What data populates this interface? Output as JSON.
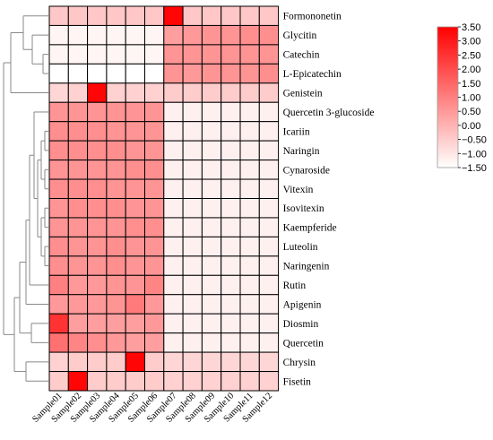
{
  "chart_data": {
    "type": "heatmap",
    "columns": [
      "Sample01",
      "Sample02",
      "Sample03",
      "Sample04",
      "Sample05",
      "Sample06",
      "Sample07",
      "Sample08",
      "Sample09",
      "Sample10",
      "Sample11",
      "Sample12"
    ],
    "rows": [
      "Formononetin",
      "Glycitin",
      "Catechin",
      "L-Epicatechin",
      "Genistein",
      "Quercetin 3-glucoside",
      "Icariin",
      "Naringin",
      "Cynaroside",
      "Vitexin",
      "Isovitexin",
      "Kaempferide",
      "Luteolin",
      "Naringenin",
      "Rutin",
      "Apigenin",
      "Diosmin",
      "Quercetin",
      "Chrysin",
      "Fisetin"
    ],
    "values": [
      [
        -0.4,
        -0.4,
        -0.4,
        -0.4,
        -0.4,
        -0.4,
        3.4,
        -0.4,
        -0.4,
        -0.4,
        -0.4,
        -0.4
      ],
      [
        -1.3,
        -1.3,
        -1.3,
        -1.3,
        -1.3,
        -1.3,
        0.4,
        0.5,
        0.6,
        0.6,
        0.7,
        0.7
      ],
      [
        -1.3,
        -1.3,
        -1.3,
        -1.3,
        -1.3,
        -1.3,
        0.6,
        0.6,
        0.6,
        0.6,
        0.6,
        0.6
      ],
      [
        -1.5,
        -1.5,
        -1.5,
        -1.5,
        -1.5,
        -1.5,
        0.6,
        0.5,
        0.6,
        0.6,
        0.6,
        0.7
      ],
      [
        -0.7,
        -0.6,
        3.4,
        -0.6,
        -0.6,
        -0.6,
        -0.5,
        -0.5,
        -0.5,
        -0.5,
        -0.5,
        -0.5
      ],
      [
        0.6,
        0.6,
        0.6,
        0.6,
        0.6,
        0.6,
        -1.2,
        -1.2,
        -1.2,
        -1.2,
        -1.2,
        -1.2
      ],
      [
        0.7,
        0.7,
        0.7,
        0.6,
        0.6,
        0.6,
        -1.2,
        -1.2,
        -1.2,
        -1.2,
        -1.2,
        -1.2
      ],
      [
        0.7,
        0.7,
        0.7,
        0.7,
        0.6,
        0.6,
        -1.2,
        -1.2,
        -1.2,
        -1.2,
        -1.2,
        -1.2
      ],
      [
        0.6,
        0.6,
        0.6,
        0.6,
        0.7,
        0.7,
        -1.2,
        -1.2,
        -1.2,
        -1.2,
        -1.2,
        -1.2
      ],
      [
        0.7,
        0.7,
        0.7,
        0.6,
        0.6,
        0.6,
        -1.2,
        -1.2,
        -1.2,
        -1.2,
        -1.2,
        -1.2
      ],
      [
        0.6,
        0.7,
        0.7,
        0.7,
        0.6,
        0.6,
        -1.2,
        -1.2,
        -1.2,
        -1.2,
        -1.2,
        -1.2
      ],
      [
        0.6,
        0.6,
        0.6,
        0.6,
        0.7,
        0.7,
        -1.2,
        -1.2,
        -1.2,
        -1.2,
        -1.2,
        -1.2
      ],
      [
        0.7,
        0.6,
        0.6,
        0.7,
        0.6,
        0.6,
        -1.2,
        -1.2,
        -1.2,
        -1.2,
        -1.2,
        -1.2
      ],
      [
        0.7,
        0.6,
        0.6,
        0.7,
        0.6,
        0.6,
        -1.2,
        -1.2,
        -1.2,
        -1.2,
        -1.2,
        -1.2
      ],
      [
        1.0,
        0.5,
        0.5,
        0.6,
        0.6,
        0.9,
        -1.2,
        -1.2,
        -1.2,
        -1.2,
        -1.2,
        -1.2
      ],
      [
        0.5,
        0.5,
        0.5,
        0.6,
        1.1,
        0.5,
        -1.2,
        -1.2,
        -1.2,
        -1.2,
        -1.2,
        -1.2
      ],
      [
        2.5,
        0.4,
        0.4,
        0.4,
        0.4,
        0.5,
        -1.2,
        -1.2,
        -1.2,
        -1.2,
        -1.2,
        -1.2
      ],
      [
        1.3,
        0.9,
        0.7,
        0.5,
        0.4,
        0.4,
        -1.2,
        -1.2,
        -1.2,
        -1.2,
        -1.2,
        -1.2
      ],
      [
        -0.6,
        -0.5,
        -0.5,
        -0.5,
        3.4,
        -0.5,
        -0.7,
        -0.7,
        -0.7,
        -0.7,
        -0.7,
        -0.7
      ],
      [
        -0.5,
        3.4,
        -0.5,
        -0.5,
        -0.5,
        -0.5,
        -0.6,
        -0.6,
        -0.6,
        -0.6,
        -0.6,
        -0.6
      ]
    ],
    "color_scale": {
      "min": -1.5,
      "max": 3.5,
      "low_color": "#ffffff",
      "high_color": "#ff0000",
      "ticks": [
        "3.50",
        "3.00",
        "2.50",
        "2.00",
        "1.50",
        "1.00",
        "0.50",
        "0.00",
        "−0.50",
        "−1.00",
        "−1.50"
      ]
    },
    "dendrogram": "rows",
    "legend_position": "top-right",
    "title": "",
    "xlabel": "",
    "ylabel": ""
  }
}
